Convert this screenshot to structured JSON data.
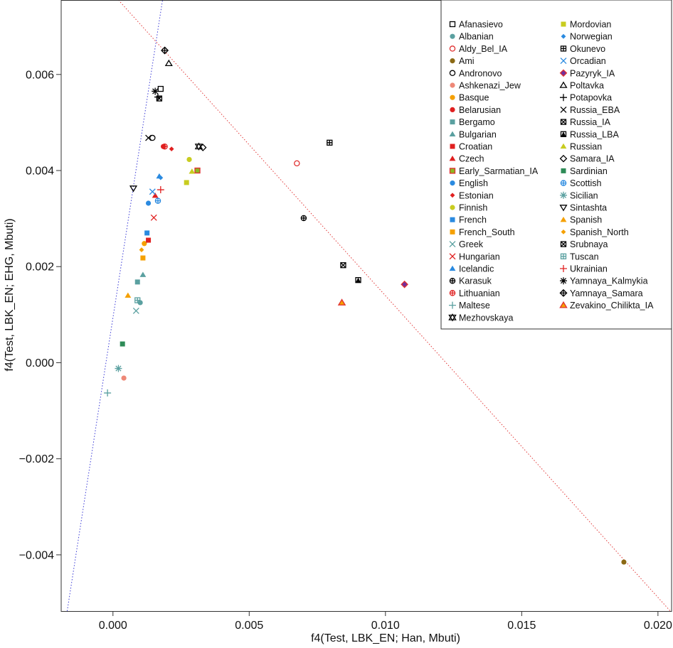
{
  "chart_data": {
    "type": "scatter",
    "xlabel": "f4(Test, LBK_EN; Han, Mbuti)",
    "ylabel": "f4(Test, LBK_EN; EHG, Mbuti)",
    "xlim": [
      -0.0019,
      0.0205
    ],
    "ylim": [
      -0.00517,
      0.00755
    ],
    "x_ticks": [
      0.0,
      0.005,
      0.01,
      0.015,
      0.02
    ],
    "x_tick_labels": [
      "0.000",
      "0.005",
      "0.010",
      "0.015",
      "0.020"
    ],
    "y_ticks": [
      -0.004,
      -0.002,
      0.0,
      0.002,
      0.004,
      0.006
    ],
    "y_tick_labels": [
      "−0.004",
      "−0.002",
      "0.000",
      "0.002",
      "0.004",
      "0.006"
    ],
    "grid": false,
    "legend_position": "top-right",
    "reference_lines": [
      {
        "name": "",
        "color": "#3b3bd6",
        "style": "dotted",
        "points": [
          [
            -0.00168,
            -0.00517
          ],
          [
            0.00182,
            0.00755
          ]
        ]
      },
      {
        "name": "",
        "color": "#e23b3b",
        "style": "dotted",
        "points": [
          [
            0.0002,
            0.00755
          ],
          [
            0.0205,
            -0.0052
          ]
        ]
      }
    ],
    "series": [
      {
        "name": "Afanasievo",
        "marker": "square-open",
        "color": "#000000",
        "x": 0.00175,
        "y": 0.0057
      },
      {
        "name": "Albanian",
        "marker": "circle",
        "color": "#5aa0a0",
        "x": 0.001,
        "y": 0.00125
      },
      {
        "name": "Aldy_Bel_IA",
        "marker": "circle-open",
        "color": "#e03030",
        "x": 0.00675,
        "y": 0.00415
      },
      {
        "name": "Ami",
        "marker": "circle",
        "color": "#8b6914",
        "x": 0.01875,
        "y": -0.00415
      },
      {
        "name": "Andronovo",
        "marker": "circle-open",
        "color": "#000000",
        "x": 0.00145,
        "y": 0.00468
      },
      {
        "name": "Ashkenazi_Jew",
        "marker": "circle",
        "color": "#ee8877",
        "x": 0.0004,
        "y": -0.00032
      },
      {
        "name": "Basque",
        "marker": "circle",
        "color": "#f5a000",
        "x": 0.00115,
        "y": 0.00248
      },
      {
        "name": "Belarusian",
        "marker": "circle",
        "color": "#e02020",
        "x": 0.00185,
        "y": 0.0045
      },
      {
        "name": "Bergamo",
        "marker": "square",
        "color": "#5aa0a0",
        "x": 0.0009,
        "y": 0.00168
      },
      {
        "name": "Bulgarian",
        "marker": "triangle",
        "color": "#5aa0a0",
        "x": 0.0011,
        "y": 0.00183
      },
      {
        "name": "Croatian",
        "marker": "square",
        "color": "#e02020",
        "x": 0.0013,
        "y": 0.00255
      },
      {
        "name": "Czech",
        "marker": "triangle",
        "color": "#e02020",
        "x": 0.00155,
        "y": 0.00348
      },
      {
        "name": "Early_Sarmatian_IA",
        "marker": "square-bordered",
        "color": "#8cb820",
        "border": "#e03030",
        "x": 0.0031,
        "y": 0.004
      },
      {
        "name": "English",
        "marker": "circle",
        "color": "#2a8ae0",
        "x": 0.0013,
        "y": 0.00332
      },
      {
        "name": "Estonian",
        "marker": "diamond",
        "color": "#e02020",
        "x": 0.00215,
        "y": 0.00445
      },
      {
        "name": "Finnish",
        "marker": "circle",
        "color": "#c8cc20",
        "x": 0.0028,
        "y": 0.00423
      },
      {
        "name": "French",
        "marker": "square",
        "color": "#2a8ae0",
        "x": 0.00125,
        "y": 0.0027
      },
      {
        "name": "French_South",
        "marker": "square",
        "color": "#f5a000",
        "x": 0.0011,
        "y": 0.00218
      },
      {
        "name": "Greek",
        "marker": "x",
        "color": "#5aa0a0",
        "x": 0.00085,
        "y": 0.00108
      },
      {
        "name": "Hungarian",
        "marker": "x",
        "color": "#e02020",
        "x": 0.0015,
        "y": 0.00302
      },
      {
        "name": "Icelandic",
        "marker": "triangle",
        "color": "#2a8ae0",
        "x": 0.0017,
        "y": 0.00388
      },
      {
        "name": "Karasuk",
        "marker": "circle-plus",
        "color": "#000000",
        "x": 0.007,
        "y": 0.00301
      },
      {
        "name": "Lithuanian",
        "marker": "circle-plus",
        "color": "#e02020",
        "x": 0.0019,
        "y": 0.0045
      },
      {
        "name": "Maltese",
        "marker": "plus",
        "color": "#5aa0a0",
        "x": -0.0002,
        "y": -0.00063
      },
      {
        "name": "Mezhovskaya",
        "marker": "star-david",
        "color": "#000000",
        "x": 0.00315,
        "y": 0.0045
      },
      {
        "name": "Mordovian",
        "marker": "square",
        "color": "#c8cc20",
        "x": 0.0027,
        "y": 0.00375
      },
      {
        "name": "Norwegian",
        "marker": "diamond",
        "color": "#2a8ae0",
        "x": 0.00175,
        "y": 0.00385
      },
      {
        "name": "Okunevo",
        "marker": "square-plus",
        "color": "#000000",
        "x": 0.00795,
        "y": 0.00458
      },
      {
        "name": "Orcadian",
        "marker": "x",
        "color": "#2a8ae0",
        "x": 0.00145,
        "y": 0.00356
      },
      {
        "name": "Pazyryk_IA",
        "marker": "diamond-bordered",
        "color": "#7030a0",
        "border": "#e03030",
        "x": 0.0107,
        "y": 0.00163
      },
      {
        "name": "Poltavka",
        "marker": "triangle-open",
        "color": "#000000",
        "x": 0.00205,
        "y": 0.00623
      },
      {
        "name": "Potapovka",
        "marker": "plus",
        "color": "#000000",
        "x": 0.00165,
        "y": 0.00553
      },
      {
        "name": "Russia_EBA",
        "marker": "x",
        "color": "#000000",
        "x": 0.0013,
        "y": 0.00468
      },
      {
        "name": "Russia_IA",
        "marker": "square-x",
        "color": "#000000",
        "x": 0.00845,
        "y": 0.00203
      },
      {
        "name": "Russia_LBA",
        "marker": "square-triangle",
        "color": "#000000",
        "x": 0.009,
        "y": 0.00172
      },
      {
        "name": "Russian",
        "marker": "triangle",
        "color": "#c8cc20",
        "x": 0.0029,
        "y": 0.00398
      },
      {
        "name": "Samara_IA",
        "marker": "diamond-open",
        "color": "#000000",
        "x": 0.0033,
        "y": 0.00448
      },
      {
        "name": "Sardinian",
        "marker": "square",
        "color": "#2e8b57",
        "x": 0.00035,
        "y": 0.00039
      },
      {
        "name": "Scottish",
        "marker": "circle-plus",
        "color": "#2a8ae0",
        "x": 0.00165,
        "y": 0.00337
      },
      {
        "name": "Sicilian",
        "marker": "asterisk",
        "color": "#5aa0a0",
        "x": 0.0002,
        "y": -0.00012
      },
      {
        "name": "Sintashta",
        "marker": "triangle-down-open",
        "color": "#000000",
        "x": 0.00075,
        "y": 0.00363
      },
      {
        "name": "Spanish",
        "marker": "triangle",
        "color": "#f5a000",
        "x": 0.00055,
        "y": 0.0014
      },
      {
        "name": "Spanish_North",
        "marker": "diamond",
        "color": "#f5a000",
        "x": 0.00105,
        "y": 0.00235
      },
      {
        "name": "Srubnaya",
        "marker": "square-x",
        "color": "#000000",
        "x": 0.0017,
        "y": 0.0055
      },
      {
        "name": "Tuscan",
        "marker": "square-plus",
        "color": "#5aa0a0",
        "x": 0.0009,
        "y": 0.0013
      },
      {
        "name": "Ukrainian",
        "marker": "plus",
        "color": "#e02020",
        "x": 0.00175,
        "y": 0.0036
      },
      {
        "name": "Yamnaya_Kalmykia",
        "marker": "asterisk",
        "color": "#000000",
        "x": 0.00155,
        "y": 0.00565
      },
      {
        "name": "Yamnaya_Samara",
        "marker": "diamond-plus",
        "color": "#000000",
        "x": 0.0019,
        "y": 0.0065
      },
      {
        "name": "Zevakino_Chilikta_IA",
        "marker": "triangle-bordered",
        "color": "#f5a000",
        "border": "#e03030",
        "x": 0.0084,
        "y": 0.00125
      }
    ]
  }
}
